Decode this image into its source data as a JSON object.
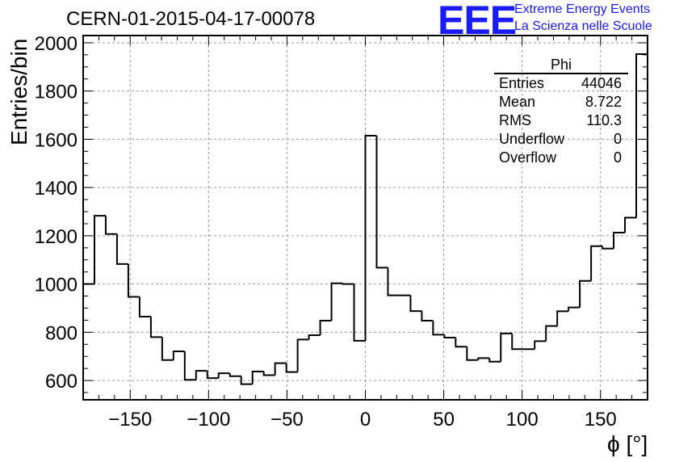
{
  "title": "CERN-01-2015-04-17-00078",
  "logo": {
    "mark": "EEE",
    "line1": "Extreme Energy Events",
    "line2": "La Scienza nelle Scuole",
    "color": "#1a1aff"
  },
  "stats": {
    "title": "Phi",
    "rows": [
      {
        "label": "Entries",
        "value": "44046"
      },
      {
        "label": "Mean",
        "value": "8.722"
      },
      {
        "label": "RMS",
        "value": "110.3"
      },
      {
        "label": "Underflow",
        "value": "0"
      },
      {
        "label": "Overflow",
        "value": "0"
      }
    ]
  },
  "chart_data": {
    "type": "bar",
    "title": "CERN-01-2015-04-17-00078",
    "xlabel": "ϕ [°]",
    "ylabel": "Entries/bin",
    "xlim": [
      -180,
      180
    ],
    "ylim": [
      520,
      2030
    ],
    "xticks": [
      -150,
      -100,
      -50,
      0,
      50,
      100,
      150
    ],
    "yticks": [
      600,
      800,
      1000,
      1200,
      1400,
      1600,
      1800,
      2000
    ],
    "grid": true,
    "bin_width": 7.2,
    "values": [
      1000,
      1283,
      1207,
      1083,
      947,
      865,
      780,
      685,
      721,
      603,
      640,
      610,
      630,
      618,
      585,
      637,
      622,
      672,
      635,
      770,
      788,
      848,
      1003,
      1000,
      765,
      1615,
      1068,
      953,
      953,
      888,
      848,
      790,
      778,
      740,
      685,
      693,
      678,
      795,
      730,
      730,
      763,
      826,
      887,
      903,
      1013,
      1157,
      1147,
      1213,
      1275,
      1953
    ]
  }
}
